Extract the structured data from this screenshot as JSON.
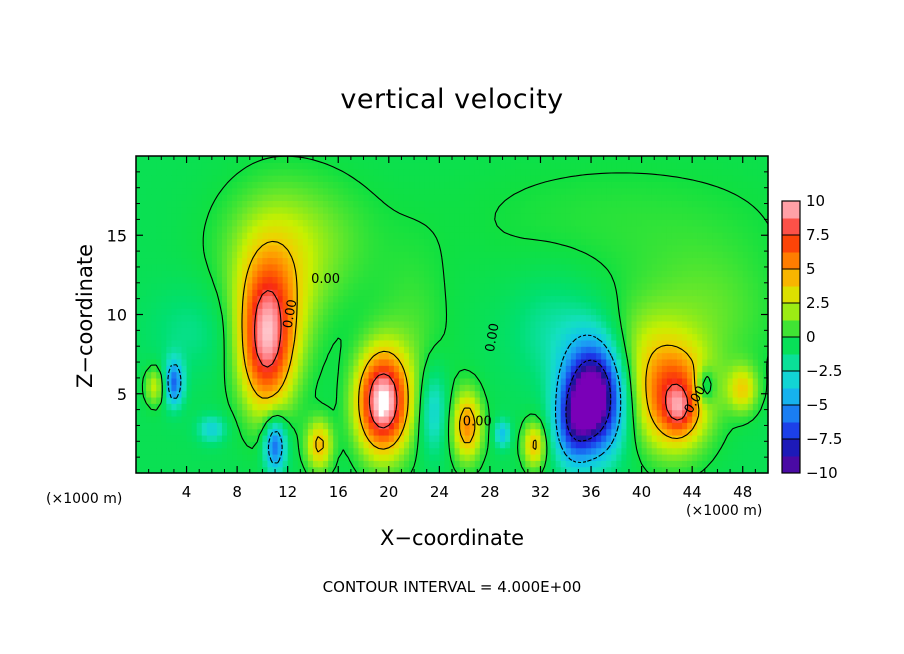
{
  "chart_data": {
    "type": "heatmap",
    "title": "vertical velocity",
    "xlabel": "X−coordinate",
    "ylabel": "Z−coordinate",
    "x_unit_left": "(×1000 m)",
    "x_unit_right": "(×1000 m)",
    "xlim": [
      0,
      50
    ],
    "ylim": [
      0,
      20
    ],
    "x_ticks": [
      4,
      8,
      12,
      16,
      20,
      24,
      28,
      32,
      36,
      40,
      44,
      48
    ],
    "y_ticks": [
      5,
      10,
      15
    ],
    "contour_interval_text": "CONTOUR INTERVAL = 4.000E+00",
    "contour_label": "0.00",
    "colorbar": {
      "min": -10,
      "max": 10,
      "tick_values": [
        10,
        7.5,
        5,
        2.5,
        0,
        -2.5,
        -5,
        -7.5,
        -10
      ],
      "tick_labels": [
        "10",
        "7.5",
        "5",
        "2.5",
        "0",
        "−2.5",
        "−5",
        "−7.5",
        "−10"
      ],
      "stops": [
        {
          "v": -10,
          "color": "#7a00b8"
        },
        {
          "v": -8.75,
          "color": "#1a1490"
        },
        {
          "v": -7.5,
          "color": "#2020e0"
        },
        {
          "v": -6.25,
          "color": "#1860f0"
        },
        {
          "v": -5,
          "color": "#1c9cf4"
        },
        {
          "v": -3.75,
          "color": "#10c8e8"
        },
        {
          "v": -2.5,
          "color": "#14e0c0"
        },
        {
          "v": -1.25,
          "color": "#00e070"
        },
        {
          "v": 0,
          "color": "#10e040"
        },
        {
          "v": 1.25,
          "color": "#70e828"
        },
        {
          "v": 2.5,
          "color": "#c8f000"
        },
        {
          "v": 3.75,
          "color": "#f0d000"
        },
        {
          "v": 5,
          "color": "#ff9a00"
        },
        {
          "v": 6.25,
          "color": "#ff6000"
        },
        {
          "v": 7.5,
          "color": "#f82810"
        },
        {
          "v": 8.75,
          "color": "#ff7a80"
        },
        {
          "v": 10,
          "color": "#ffc6cc"
        }
      ]
    },
    "background_value": -0.5,
    "features": [
      {
        "x": 10.3,
        "z": 8.2,
        "sx": 1.4,
        "sz": 3.0,
        "amp": 7.5
      },
      {
        "x": 10.8,
        "z": 10.5,
        "sx": 2.2,
        "sz": 3.5,
        "amp": 3.5
      },
      {
        "x": 12.5,
        "z": 14.5,
        "sx": 4.0,
        "sz": 3.0,
        "amp": 2.2
      },
      {
        "x": 19.5,
        "z": 4.5,
        "sx": 1.4,
        "sz": 2.2,
        "amp": 11.0
      },
      {
        "x": 26.2,
        "z": 3.0,
        "sx": 0.8,
        "sz": 1.5,
        "amp": 6.0
      },
      {
        "x": 36.2,
        "z": 4.8,
        "sx": 1.6,
        "sz": 2.4,
        "amp": -11.5
      },
      {
        "x": 34.5,
        "z": 3.0,
        "sx": 1.0,
        "sz": 1.8,
        "amp": -4.0
      },
      {
        "x": 42.5,
        "z": 4.8,
        "sx": 2.0,
        "sz": 2.3,
        "amp": 7.5
      },
      {
        "x": 43.0,
        "z": 4.0,
        "sx": 0.8,
        "sz": 1.0,
        "amp": 3.0
      },
      {
        "x": 11.0,
        "z": 1.8,
        "sx": 0.6,
        "sz": 1.2,
        "amp": -6.5
      },
      {
        "x": 3.0,
        "z": 5.7,
        "sx": 0.5,
        "sz": 1.0,
        "amp": -6.0
      },
      {
        "x": 1.5,
        "z": 5.5,
        "sx": 0.5,
        "sz": 0.8,
        "amp": 3.5
      },
      {
        "x": 6.0,
        "z": 2.8,
        "sx": 0.8,
        "sz": 0.6,
        "amp": -3.0
      },
      {
        "x": 14.5,
        "z": 1.8,
        "sx": 0.7,
        "sz": 1.1,
        "amp": 5.0
      },
      {
        "x": 23.5,
        "z": 4.0,
        "sx": 0.8,
        "sz": 2.0,
        "amp": -3.2
      },
      {
        "x": 31.5,
        "z": 1.8,
        "sx": 0.6,
        "sz": 1.0,
        "amp": 5.0
      },
      {
        "x": 45.0,
        "z": 5.5,
        "sx": 0.5,
        "sz": 0.8,
        "amp": -4.0
      },
      {
        "x": 48.0,
        "z": 5.3,
        "sx": 0.8,
        "sz": 1.0,
        "amp": 4.0
      },
      {
        "x": 29.0,
        "z": 2.5,
        "sx": 0.4,
        "sz": 0.6,
        "amp": -4.0
      },
      {
        "x": 33.0,
        "z": 9.0,
        "sx": 2.5,
        "sz": 2.5,
        "amp": -1.5
      },
      {
        "x": 45.0,
        "z": 10.0,
        "sx": 4.0,
        "sz": 3.0,
        "amp": 1.5
      },
      {
        "x": 4.5,
        "z": 9.0,
        "sx": 2.5,
        "sz": 2.0,
        "amp": -1.2
      },
      {
        "x": 38.0,
        "z": 16.0,
        "sx": 10.0,
        "sz": 3.0,
        "amp": 0.8
      },
      {
        "x": 22.0,
        "z": 8.0,
        "sx": 2.0,
        "sz": 4.0,
        "amp": 1.2
      },
      {
        "x": 40.0,
        "z": 8.0,
        "sx": 2.0,
        "sz": 2.0,
        "amp": 1.5
      }
    ]
  }
}
